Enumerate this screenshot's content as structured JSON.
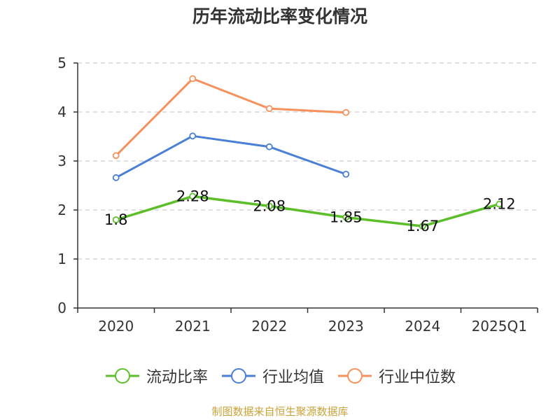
{
  "footer": "制图数据来自恒生聚源数据库",
  "colors": {
    "text": "#333333",
    "grid": "#cccccc",
    "axis": "#333333",
    "footer": "#c9a23a"
  },
  "chart_data": {
    "type": "line",
    "title": "历年流动比率变化情况",
    "xlabel": "",
    "ylabel": "",
    "categories": [
      "2020",
      "2021",
      "2022",
      "2023",
      "2024",
      "2025Q1"
    ],
    "ylim": [
      0,
      5
    ],
    "yticks": [
      0,
      1,
      2,
      3,
      4,
      5
    ],
    "grid": true,
    "legend_position": "bottom",
    "series": [
      {
        "name": "流动比率",
        "color": "#5cbf2a",
        "values": [
          1.8,
          2.28,
          2.08,
          1.85,
          1.67,
          2.12
        ],
        "data_labels": [
          "1.8",
          "2.28",
          "2.08",
          "1.85",
          "1.67",
          "2.12"
        ]
      },
      {
        "name": "行业均值",
        "color": "#4a7fd6",
        "values": [
          2.66,
          3.51,
          3.29,
          2.73,
          null,
          null
        ]
      },
      {
        "name": "行业中位数",
        "color": "#f7915c",
        "values": [
          3.11,
          4.68,
          4.07,
          3.99,
          null,
          null
        ]
      }
    ]
  }
}
